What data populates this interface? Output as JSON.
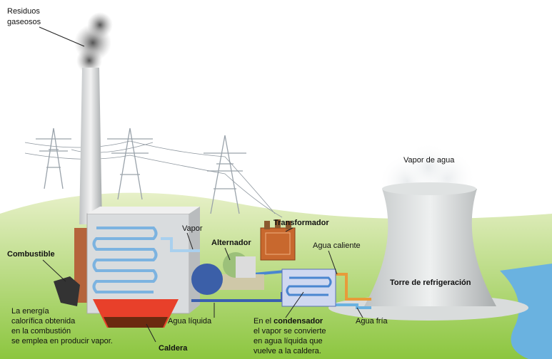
{
  "labels": {
    "residuos": {
      "lines": [
        "Residuos",
        "gaseosos"
      ]
    },
    "vapor_agua": "Vapor de agua",
    "transformador": "Transformador",
    "vapor": "Vapor",
    "alternador": "Alternador",
    "agua_caliente": "Agua caliente",
    "combustible": "Combustible",
    "torre": "Torre de refrigeración",
    "energia": {
      "lines": [
        "La energía",
        "calorífica obtenida",
        "en la combustión",
        "se emplea en producir vapor."
      ]
    },
    "agua_liquida": "Agua líquida",
    "condensador": {
      "intro": "En el",
      "term": "condensador",
      "lines": [
        "el vapor se convierte",
        "en agua líquida que",
        "vuelve a la caldera."
      ]
    },
    "agua_fria": "Agua fría",
    "caldera": "Caldera"
  }
}
